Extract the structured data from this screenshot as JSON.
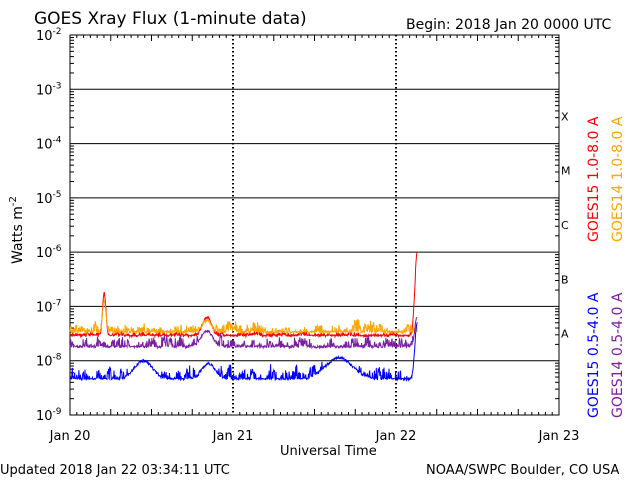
{
  "chart_data": {
    "type": "line",
    "title": "GOES Xray Flux (1-minute data)",
    "begin_label": "Begin:  2018 Jan 20 0000 UTC",
    "xlabel": "Universal Time",
    "ylabel": "Watts m",
    "ylabel_sup": "-2",
    "x_ticks": [
      "Jan 20",
      "Jan 21",
      "Jan 22",
      "Jan 23"
    ],
    "x_range_days": [
      0,
      3
    ],
    "y_scale": "log",
    "ylim": [
      1e-09,
      0.01
    ],
    "y_tick_exponents": [
      "-2",
      "-3",
      "-4",
      "-5",
      "-6",
      "-7",
      "-8",
      "-9"
    ],
    "flare_classes": [
      "X",
      "M",
      "C",
      "B",
      "A"
    ],
    "series": [
      {
        "name": "GOES15 1.0-8.0 A",
        "color": "#ff0000",
        "baseline_log": -7.55,
        "noise": 0.06,
        "end_day": 2.13,
        "spikes": [
          [
            0.21,
            -6.75,
            0.015
          ],
          [
            0.84,
            -7.2,
            0.04
          ],
          [
            2.13,
            -6.0,
            0.02
          ]
        ]
      },
      {
        "name": "GOES14 1.0-8.0 A",
        "color": "#ffa500",
        "baseline_log": -7.48,
        "noise": 0.12,
        "end_day": 2.13,
        "spikes": [
          [
            0.21,
            -6.9,
            0.015
          ],
          [
            0.84,
            -7.25,
            0.04
          ]
        ]
      },
      {
        "name": "GOES15 0.5-4.0 A",
        "color": "#0000ff",
        "baseline_log": -8.35,
        "noise": 0.18,
        "end_day": 2.13,
        "spikes": [
          [
            0.45,
            -8.0,
            0.08
          ],
          [
            0.85,
            -8.05,
            0.06
          ],
          [
            1.65,
            -7.95,
            0.12
          ],
          [
            2.13,
            -7.3,
            0.02
          ]
        ]
      },
      {
        "name": "GOES14 0.5-4.0 A",
        "color": "#7b1fa2",
        "baseline_log": -7.75,
        "noise": 0.14,
        "end_day": 2.13,
        "spikes": [
          [
            0.84,
            -7.45,
            0.05
          ],
          [
            2.13,
            -7.2,
            0.02
          ]
        ]
      }
    ]
  },
  "footer": {
    "updated": "Updated 2018 Jan 22 03:34:11 UTC",
    "credit": "NOAA/SWPC Boulder, CO USA"
  }
}
